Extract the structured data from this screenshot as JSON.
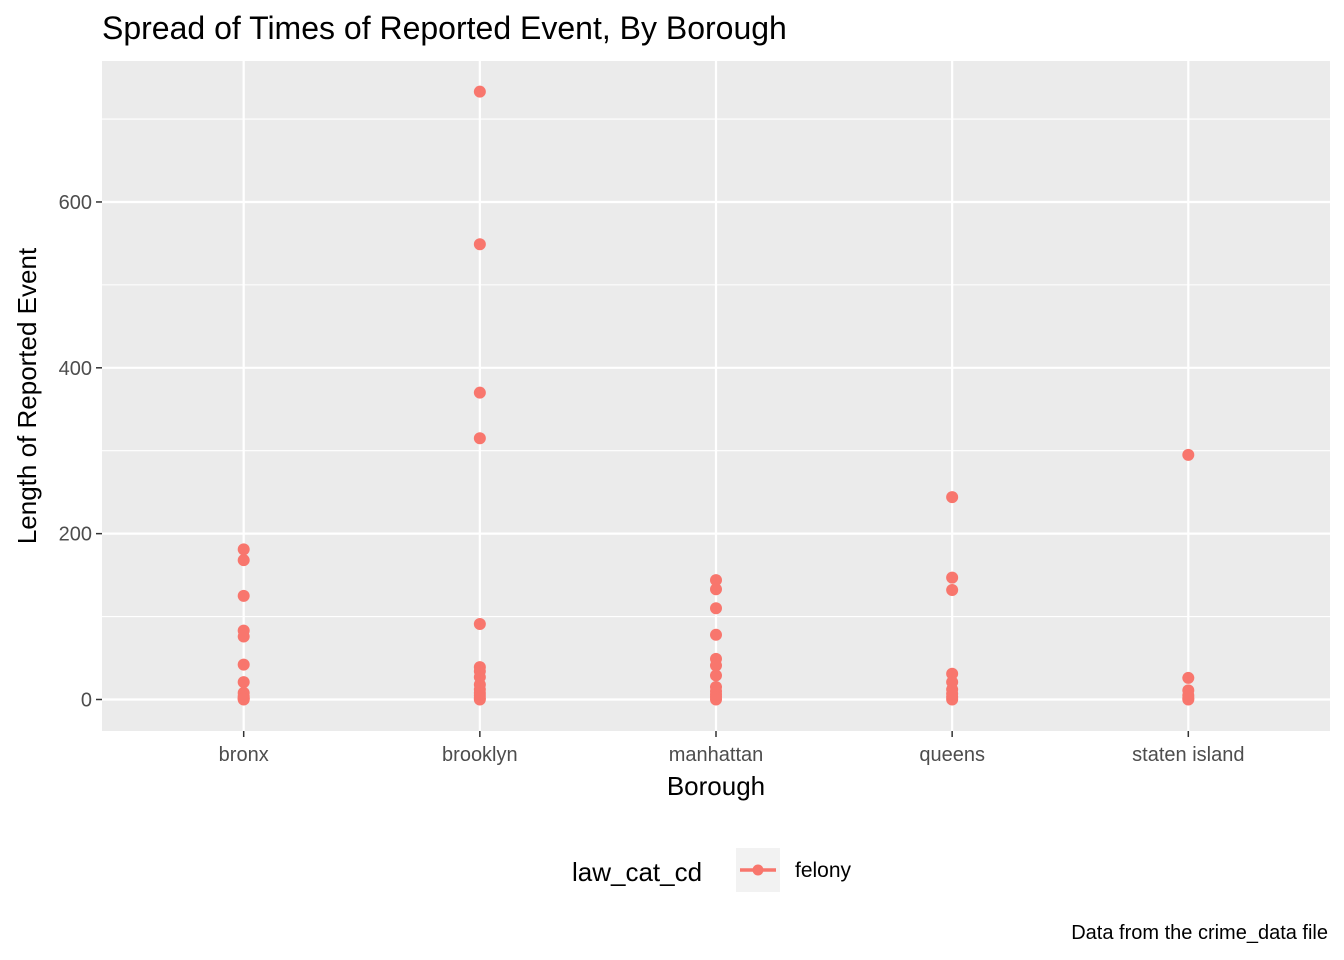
{
  "chart_data": {
    "type": "scatter",
    "title": "Spread of Times of Reported Event, By Borough",
    "xlabel": "Borough",
    "ylabel": "Length of Reported Event",
    "caption": "Data from the crime_data file",
    "categories": [
      "bronx",
      "brooklyn",
      "manhattan",
      "queens",
      "staten island"
    ],
    "ylim": [
      -38,
      770
    ],
    "yticks": [
      0,
      200,
      400,
      600
    ],
    "grid": true,
    "legend": {
      "title": "law_cat_cd",
      "position": "bottom"
    },
    "series": [
      {
        "name": "felony",
        "color": "#F8766D",
        "points": [
          {
            "x": "bronx",
            "y": 181
          },
          {
            "x": "bronx",
            "y": 168
          },
          {
            "x": "bronx",
            "y": 125
          },
          {
            "x": "bronx",
            "y": 83
          },
          {
            "x": "bronx",
            "y": 76
          },
          {
            "x": "bronx",
            "y": 42
          },
          {
            "x": "bronx",
            "y": 21
          },
          {
            "x": "bronx",
            "y": 8
          },
          {
            "x": "bronx",
            "y": 4
          },
          {
            "x": "bronx",
            "y": 2
          },
          {
            "x": "bronx",
            "y": 1
          },
          {
            "x": "bronx",
            "y": 0
          },
          {
            "x": "brooklyn",
            "y": 733
          },
          {
            "x": "brooklyn",
            "y": 549
          },
          {
            "x": "brooklyn",
            "y": 370
          },
          {
            "x": "brooklyn",
            "y": 315
          },
          {
            "x": "brooklyn",
            "y": 91
          },
          {
            "x": "brooklyn",
            "y": 39
          },
          {
            "x": "brooklyn",
            "y": 34
          },
          {
            "x": "brooklyn",
            "y": 27
          },
          {
            "x": "brooklyn",
            "y": 18
          },
          {
            "x": "brooklyn",
            "y": 12
          },
          {
            "x": "brooklyn",
            "y": 8
          },
          {
            "x": "brooklyn",
            "y": 5
          },
          {
            "x": "brooklyn",
            "y": 2
          },
          {
            "x": "brooklyn",
            "y": 0
          },
          {
            "x": "manhattan",
            "y": 144
          },
          {
            "x": "manhattan",
            "y": 133
          },
          {
            "x": "manhattan",
            "y": 110
          },
          {
            "x": "manhattan",
            "y": 78
          },
          {
            "x": "manhattan",
            "y": 49
          },
          {
            "x": "manhattan",
            "y": 41
          },
          {
            "x": "manhattan",
            "y": 29
          },
          {
            "x": "manhattan",
            "y": 15
          },
          {
            "x": "manhattan",
            "y": 10
          },
          {
            "x": "manhattan",
            "y": 6
          },
          {
            "x": "manhattan",
            "y": 3
          },
          {
            "x": "manhattan",
            "y": 0
          },
          {
            "x": "queens",
            "y": 244
          },
          {
            "x": "queens",
            "y": 147
          },
          {
            "x": "queens",
            "y": 132
          },
          {
            "x": "queens",
            "y": 31
          },
          {
            "x": "queens",
            "y": 21
          },
          {
            "x": "queens",
            "y": 12
          },
          {
            "x": "queens",
            "y": 7
          },
          {
            "x": "queens",
            "y": 3
          },
          {
            "x": "queens",
            "y": 0
          },
          {
            "x": "staten island",
            "y": 295
          },
          {
            "x": "staten island",
            "y": 26
          },
          {
            "x": "staten island",
            "y": 11
          },
          {
            "x": "staten island",
            "y": 5
          },
          {
            "x": "staten island",
            "y": 2
          },
          {
            "x": "staten island",
            "y": 0
          }
        ]
      }
    ]
  }
}
